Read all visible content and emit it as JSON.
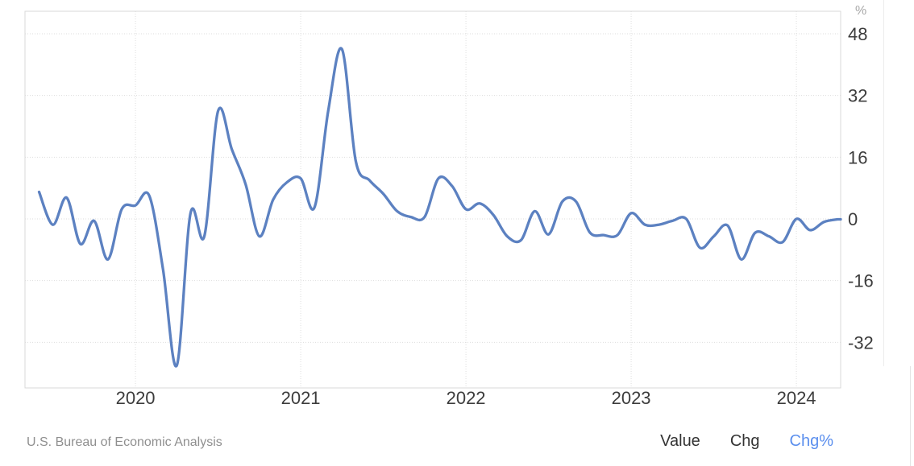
{
  "chart_data": {
    "type": "line",
    "title": "",
    "x": [
      "2019-06",
      "2019-07",
      "2019-08",
      "2019-09",
      "2019-10",
      "2019-11",
      "2019-12",
      "2020-01",
      "2020-02",
      "2020-03",
      "2020-04",
      "2020-05",
      "2020-06",
      "2020-07",
      "2020-08",
      "2020-09",
      "2020-10",
      "2020-11",
      "2020-12",
      "2021-01",
      "2021-02",
      "2021-03",
      "2021-04",
      "2021-05",
      "2021-06",
      "2021-07",
      "2021-08",
      "2021-09",
      "2021-10",
      "2021-11",
      "2021-12",
      "2022-01",
      "2022-02",
      "2022-03",
      "2022-04",
      "2022-05",
      "2022-06",
      "2022-07",
      "2022-08",
      "2022-09",
      "2022-10",
      "2022-11",
      "2022-12",
      "2023-01",
      "2023-02",
      "2023-03",
      "2023-04",
      "2023-05",
      "2023-06",
      "2023-07",
      "2023-08",
      "2023-09",
      "2023-10",
      "2023-11",
      "2023-12",
      "2024-01",
      "2024-02",
      "2024-03",
      "2024-04"
    ],
    "values": [
      7,
      -1.5,
      5.5,
      -6.5,
      -0.5,
      -10.5,
      2.5,
      3.5,
      6,
      -13,
      -38,
      1.5,
      -4.5,
      28,
      18,
      9,
      -4.5,
      5,
      9.5,
      10.5,
      3,
      28,
      44,
      15,
      10,
      6.5,
      2,
      0.5,
      0.5,
      10.5,
      8.5,
      2.5,
      4,
      1,
      -4.5,
      -5.5,
      2,
      -4,
      4.5,
      4.5,
      -3.5,
      -4.2,
      -4.2,
      1.5,
      -1.5,
      -1.5,
      -0.5,
      0,
      -7.5,
      -4.5,
      -1.7,
      -10.5,
      -3.6,
      -4.5,
      -6,
      0,
      -2.9,
      -0.8,
      -0.1
    ],
    "x_tick_labels": [
      "2020",
      "2021",
      "2022",
      "2023",
      "2024"
    ],
    "y_axis": {
      "unit": "%",
      "ticks": [
        48,
        32,
        16,
        0,
        -16,
        -32
      ]
    },
    "ylim": [
      -44,
      54
    ],
    "grid": true,
    "legend": "none",
    "line_color": "#5c81c1"
  },
  "footer": {
    "source": "U.S. Bureau of Economic Analysis",
    "modes": [
      {
        "label": "Value",
        "active": false
      },
      {
        "label": "Chg",
        "active": false
      },
      {
        "label": "Chg%",
        "active": true
      }
    ],
    "active_color": "#5b8fee"
  }
}
